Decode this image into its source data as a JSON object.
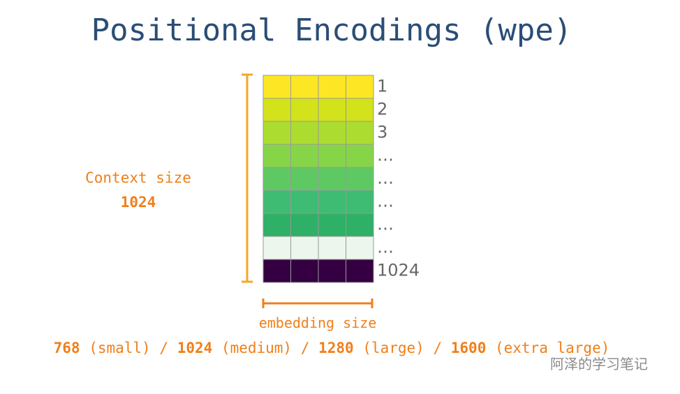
{
  "title": "Positional Encodings (wpe)",
  "context": {
    "label": "Context size",
    "value": "1024"
  },
  "embedding": {
    "label": "embedding size",
    "sizes": [
      {
        "size": "768",
        "name": "(small)"
      },
      {
        "size": "1024",
        "name": "(medium)"
      },
      {
        "size": "1280",
        "name": "(large)"
      },
      {
        "size": "1600",
        "name": "(extra large)"
      }
    ],
    "separator": "/"
  },
  "rows": [
    {
      "label": "1",
      "color": "#fde725"
    },
    {
      "label": "2",
      "color": "#d2e21b"
    },
    {
      "label": "3",
      "color": "#addc30"
    },
    {
      "label": "…",
      "color": "#86d549"
    },
    {
      "label": "…",
      "color": "#5ec962"
    },
    {
      "label": "…",
      "color": "#3fbc73"
    },
    {
      "label": "…",
      "color": "#2eb067"
    },
    {
      "label": "…",
      "color": "#ecf6ec"
    },
    {
      "label": "1024",
      "color": "#340042"
    }
  ],
  "watermark": "阿泽的学习笔记"
}
